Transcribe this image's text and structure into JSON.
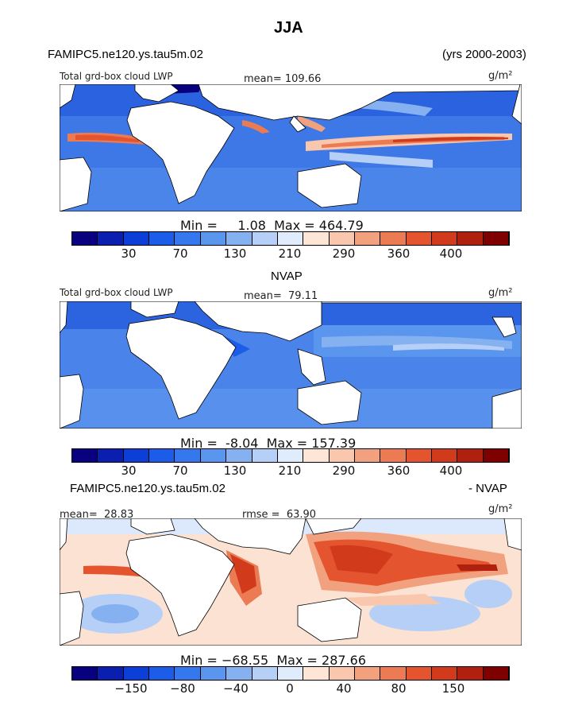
{
  "figure": {
    "title": "JJA",
    "model_name": "FAMIPC5.ne120.ys.tau5m.02",
    "years": "(yrs 2000-2003)",
    "panel2_header": "NVAP",
    "panel3_header_left": "FAMIPC5.ne120.ys.tau5m.02",
    "panel3_header_right": "- NVAP"
  },
  "colors": {
    "scale": [
      "#08007f",
      "#0a1fb0",
      "#0c3ed8",
      "#1b5ce8",
      "#3577ec",
      "#5a95ee",
      "#86b1f0",
      "#b6cff6",
      "#e0ebfb",
      "#fde6d6",
      "#f8c7ad",
      "#f2a17f",
      "#ec7a53",
      "#e4552f",
      "#d23a1c",
      "#b0200f",
      "#7f0000"
    ],
    "land_bg": "#ffffff",
    "ocean_default": "#3a78e8"
  },
  "chart_data": [
    {
      "type": "heatmap",
      "title": "Total grd-box cloud LWP",
      "unit": "g/m²",
      "stats_top": "mean= 109.66",
      "stats_bottom": "Min =     1.08  Max = 464.79",
      "colorbar_ticks": [
        "30",
        "70",
        "130",
        "210",
        "290",
        "360",
        "400"
      ],
      "min": 1.08,
      "max": 464.79,
      "mean": 109.66
    },
    {
      "type": "heatmap",
      "title": "Total grd-box cloud LWP",
      "unit": "g/m²",
      "stats_top": "mean=  79.11",
      "stats_bottom": "Min =  -8.04  Max = 157.39",
      "colorbar_ticks": [
        "30",
        "70",
        "130",
        "210",
        "290",
        "360",
        "400"
      ],
      "min": -8.04,
      "max": 157.39,
      "mean": 79.11
    },
    {
      "type": "heatmap",
      "title": "",
      "unit": "g/m²",
      "stats_top_left": "mean=  28.83",
      "stats_top_mid": "rmse =  63.90",
      "stats_bottom": "Min = −68.55  Max = 287.66",
      "colorbar_ticks": [
        "−150",
        "−80",
        "−40",
        "0",
        "40",
        "80",
        "150"
      ],
      "min": -68.55,
      "max": 287.66,
      "mean": 28.83,
      "rmse": 63.9
    }
  ]
}
